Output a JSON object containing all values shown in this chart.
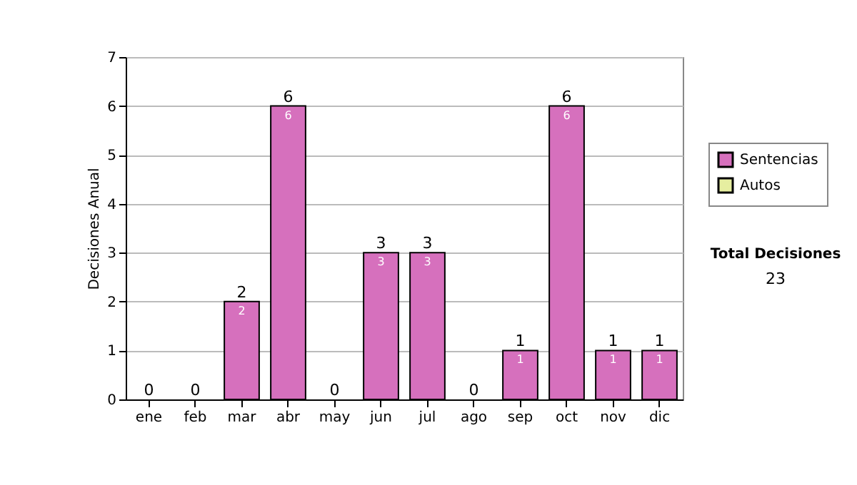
{
  "chart_data": {
    "type": "bar",
    "stacked": true,
    "ylabel": "Decisiones Anual",
    "categories": [
      "ene",
      "feb",
      "mar",
      "abr",
      "may",
      "jun",
      "jul",
      "ago",
      "sep",
      "oct",
      "nov",
      "dic"
    ],
    "series": [
      {
        "name": "Sentencias",
        "color": "#d670bd",
        "values": [
          0,
          0,
          2,
          6,
          0,
          3,
          3,
          0,
          1,
          6,
          1,
          1
        ],
        "value_labels": [
          null,
          null,
          "2",
          "6",
          null,
          "3",
          "3",
          null,
          "1",
          "6",
          "1",
          "1"
        ]
      },
      {
        "name": "Autos",
        "color": "#e6eea0",
        "values": [
          0,
          0,
          0,
          0,
          0,
          0,
          0,
          0,
          0,
          0,
          0,
          0
        ]
      }
    ],
    "totals": [
      "0",
      "0",
      "2",
      "6",
      "0",
      "3",
      "3",
      "0",
      "1",
      "6",
      "1",
      "1"
    ],
    "ylim": [
      0,
      7
    ],
    "yticks": [
      0,
      1,
      2,
      3,
      4,
      5,
      6,
      7
    ],
    "grid": "y",
    "legend": "right",
    "annotations": [
      "Total Decisiones",
      "23"
    ]
  }
}
